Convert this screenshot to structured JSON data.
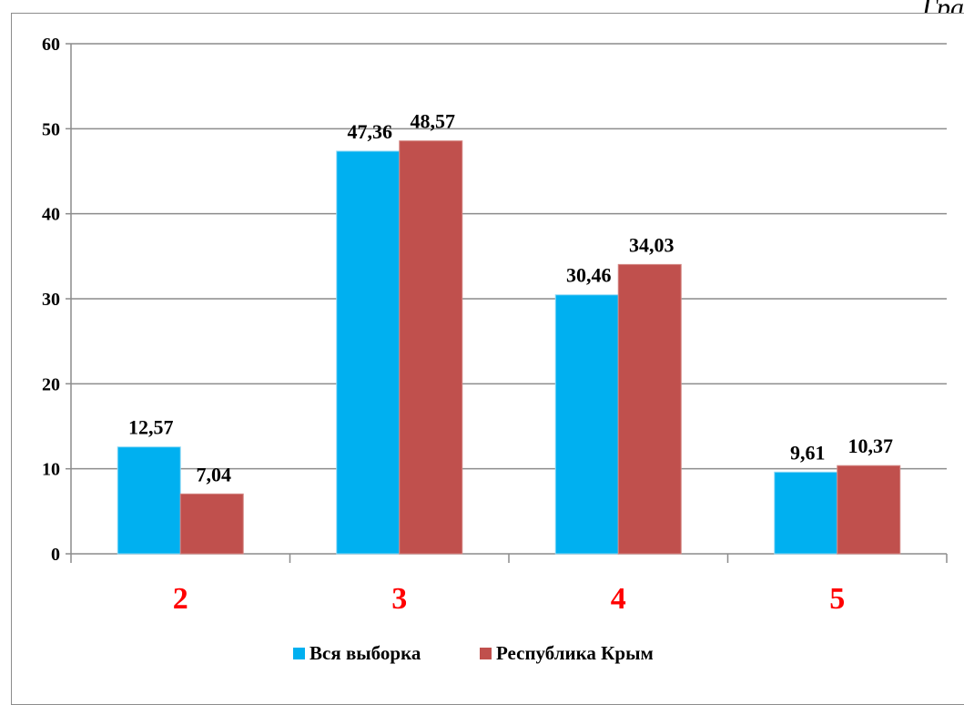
{
  "page": {
    "title": "Гра"
  },
  "chart_data": {
    "type": "bar",
    "title": "",
    "xlabel": "",
    "ylabel": "",
    "categories": [
      "2",
      "3",
      "4",
      "5"
    ],
    "category_label_color": "#ff0000",
    "ylim": [
      0,
      60
    ],
    "yticks": [
      0,
      10,
      20,
      30,
      40,
      50,
      60
    ],
    "grid": true,
    "legend_position": "bottom",
    "series": [
      {
        "name": "Вся выборка",
        "color": "#00b0f0",
        "values": [
          12.57,
          47.36,
          30.46,
          9.61
        ],
        "labels": [
          "12,57",
          "47,36",
          "30,46",
          "9,61"
        ]
      },
      {
        "name": "Республика Крым",
        "color": "#c0504d",
        "values": [
          7.04,
          48.57,
          34.03,
          10.37
        ],
        "labels": [
          "7,04",
          "48,57",
          "34,03",
          "10,37"
        ]
      }
    ]
  }
}
